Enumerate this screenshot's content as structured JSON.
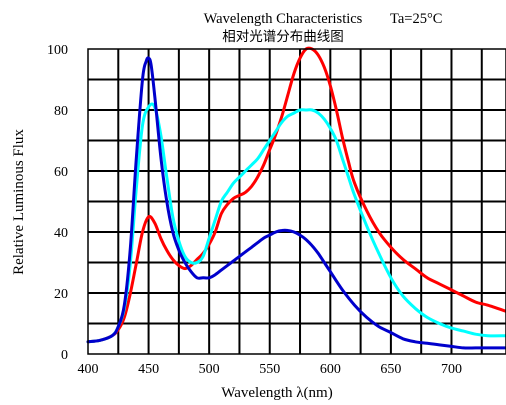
{
  "chart_data": {
    "type": "line",
    "title": "Wavelength Characteristics",
    "subtitle": "相对光谱分布曲线图",
    "annotation": "Ta=25°C",
    "xlabel": "Wavelength λ(nm)",
    "ylabel": "Relative Luminous Flux",
    "xlim": [
      400,
      745
    ],
    "ylim": [
      0,
      100
    ],
    "x_ticks": [
      400,
      450,
      500,
      550,
      600,
      650,
      700
    ],
    "y_ticks": [
      0,
      20,
      40,
      60,
      80,
      100
    ],
    "grid": true,
    "legend": "none",
    "series": [
      {
        "color": "#ff0000",
        "x": [
          400,
          410,
          420,
          425,
          430,
          435,
          440,
          445,
          450,
          455,
          460,
          465,
          470,
          475,
          480,
          485,
          490,
          495,
          500,
          505,
          510,
          515,
          520,
          525,
          530,
          535,
          540,
          545,
          550,
          555,
          560,
          565,
          570,
          575,
          580,
          585,
          590,
          595,
          600,
          605,
          610,
          615,
          620,
          630,
          640,
          650,
          660,
          670,
          680,
          690,
          700,
          710,
          720,
          730,
          745
        ],
        "values": [
          4,
          4.5,
          6,
          8,
          12,
          20,
          30,
          40,
          45,
          43,
          38,
          34,
          31,
          29,
          28,
          29,
          31,
          33,
          36,
          40,
          46,
          49,
          51,
          52,
          53,
          55,
          58,
          62,
          67,
          72,
          78,
          85,
          92,
          97,
          100,
          100,
          98,
          94,
          88,
          80,
          71,
          63,
          56,
          47,
          40,
          35,
          31,
          28,
          25,
          23,
          21,
          19,
          17,
          16,
          14
        ]
      },
      {
        "color": "#00ffff",
        "x": [
          400,
          410,
          420,
          425,
          430,
          435,
          440,
          445,
          450,
          455,
          460,
          465,
          470,
          475,
          480,
          485,
          490,
          495,
          500,
          505,
          510,
          515,
          520,
          525,
          530,
          535,
          540,
          545,
          550,
          555,
          560,
          565,
          570,
          575,
          580,
          585,
          590,
          595,
          600,
          605,
          610,
          615,
          620,
          630,
          640,
          650,
          660,
          670,
          680,
          690,
          700,
          710,
          720,
          730,
          745
        ],
        "values": [
          4,
          4.5,
          6,
          9,
          15,
          30,
          55,
          75,
          81,
          81,
          72,
          58,
          45,
          37,
          32,
          30,
          30,
          32,
          38,
          44,
          50,
          53,
          56,
          58,
          60,
          62,
          64,
          67,
          70,
          73,
          76,
          78,
          79,
          80,
          80,
          80,
          79,
          77,
          74,
          70,
          64,
          58,
          52,
          42,
          33,
          25,
          19,
          15,
          12,
          10,
          8.5,
          7.5,
          6.5,
          6,
          6
        ]
      },
      {
        "color": "#0000cc",
        "x": [
          400,
          410,
          420,
          425,
          430,
          435,
          440,
          445,
          448,
          450,
          452,
          455,
          460,
          465,
          470,
          475,
          480,
          485,
          490,
          495,
          500,
          505,
          510,
          515,
          520,
          525,
          530,
          535,
          540,
          545,
          550,
          555,
          560,
          565,
          570,
          575,
          580,
          585,
          590,
          595,
          600,
          610,
          620,
          630,
          640,
          650,
          660,
          670,
          680,
          690,
          700,
          710,
          720,
          730,
          745
        ],
        "values": [
          4,
          4.5,
          6,
          9,
          16,
          35,
          65,
          90,
          96,
          97,
          95,
          85,
          65,
          50,
          40,
          34,
          30,
          27,
          25,
          25,
          25,
          26,
          27.5,
          29,
          30.5,
          32,
          33.5,
          35,
          36.5,
          38,
          39,
          40,
          40.5,
          40.5,
          40,
          39,
          37.5,
          35.5,
          33,
          30,
          27,
          21,
          16,
          12,
          9,
          7,
          5,
          4,
          3.5,
          3,
          2.5,
          2,
          2,
          2,
          2
        ]
      }
    ]
  }
}
